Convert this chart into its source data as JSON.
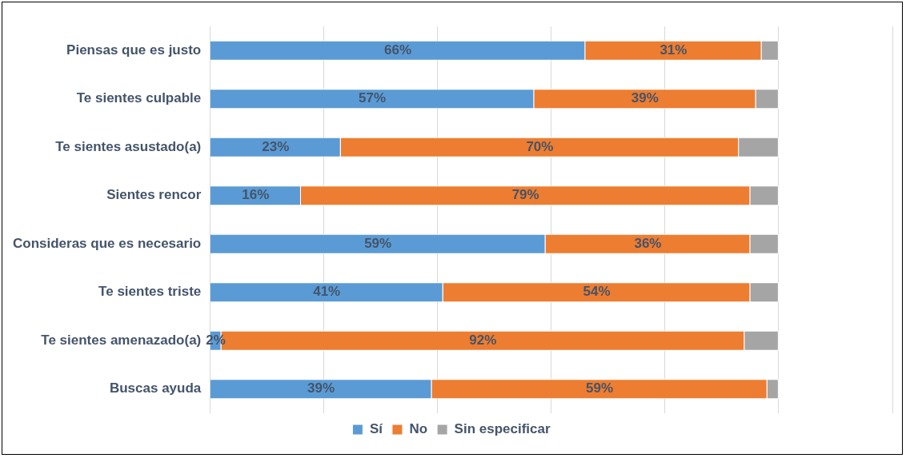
{
  "chart_data": {
    "type": "bar",
    "orientation": "horizontal",
    "stacked": true,
    "categories": [
      "Piensas que es justo",
      "Te sientes culpable",
      "Te sientes asustado(a)",
      "Sientes rencor",
      "Consideras que es necesario",
      "Te sientes triste",
      "Te sientes amenazado(a)",
      "Buscas ayuda"
    ],
    "series": [
      {
        "name": "Sí",
        "color": "#5b9bd5",
        "values": [
          66,
          57,
          23,
          16,
          59,
          41,
          2,
          39
        ],
        "value_labels": [
          "66%",
          "57%",
          "23%",
          "16%",
          "59%",
          "41%",
          "2%",
          "39%"
        ]
      },
      {
        "name": "No",
        "color": "#ed7d31",
        "values": [
          31,
          39,
          70,
          79,
          36,
          54,
          92,
          59
        ],
        "value_labels": [
          "31%",
          "39%",
          "70%",
          "79%",
          "36%",
          "54%",
          "92%",
          "59%"
        ]
      },
      {
        "name": "Sin especificar",
        "color": "#a5a5a5",
        "values": [
          3,
          4,
          7,
          5,
          5,
          5,
          6,
          2
        ],
        "value_labels": [
          null,
          null,
          null,
          null,
          null,
          null,
          null,
          null
        ]
      }
    ],
    "xlim": [
      0,
      120
    ],
    "xticks": [
      {
        "value": 0,
        "label": null
      },
      {
        "value": 20,
        "label": null
      },
      {
        "value": 40,
        "label": null
      },
      {
        "value": 60,
        "label": null
      },
      {
        "value": 80,
        "label": null
      },
      {
        "value": 100,
        "label": null
      },
      {
        "value": 120,
        "label": null
      }
    ],
    "grid": "x",
    "legend": "bottom",
    "tick_labels": "y"
  }
}
